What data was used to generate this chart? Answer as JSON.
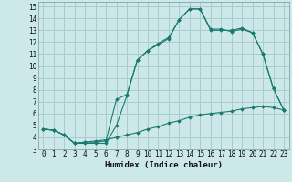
{
  "xlabel": "Humidex (Indice chaleur)",
  "ylabel": "",
  "background_color": "#cce8e8",
  "grid_color": "#aacccc",
  "line_color": "#1a7a6e",
  "xlim": [
    -0.5,
    23.5
  ],
  "ylim": [
    3,
    15.4
  ],
  "xticks": [
    0,
    1,
    2,
    3,
    4,
    5,
    6,
    7,
    8,
    9,
    10,
    11,
    12,
    13,
    14,
    15,
    16,
    17,
    18,
    19,
    20,
    21,
    22,
    23
  ],
  "yticks": [
    3,
    4,
    5,
    6,
    7,
    8,
    9,
    10,
    11,
    12,
    13,
    14,
    15
  ],
  "line1_x": [
    0,
    1,
    2,
    3,
    4,
    5,
    6,
    7,
    8,
    9,
    10,
    11,
    12,
    13,
    14,
    15,
    16,
    17,
    18,
    19,
    20,
    21,
    22,
    23
  ],
  "line1_y": [
    4.7,
    4.6,
    4.2,
    3.5,
    3.5,
    3.5,
    3.5,
    5.0,
    7.5,
    10.5,
    11.3,
    11.8,
    12.3,
    13.9,
    14.8,
    14.8,
    13.1,
    13.1,
    12.9,
    13.1,
    12.8,
    11.0,
    8.1,
    6.3
  ],
  "line2_x": [
    0,
    1,
    2,
    3,
    4,
    5,
    6,
    7,
    8,
    9,
    10,
    11,
    12,
    13,
    14,
    15,
    16,
    17,
    18,
    19,
    20,
    21,
    22,
    23
  ],
  "line2_y": [
    4.7,
    4.6,
    4.2,
    3.5,
    3.6,
    3.6,
    3.7,
    7.2,
    7.6,
    10.5,
    11.3,
    11.9,
    12.4,
    13.9,
    14.8,
    14.8,
    13.0,
    13.0,
    13.0,
    13.2,
    12.8,
    11.0,
    8.1,
    6.3
  ],
  "line3_x": [
    0,
    1,
    2,
    3,
    4,
    5,
    6,
    7,
    8,
    9,
    10,
    11,
    12,
    13,
    14,
    15,
    16,
    17,
    18,
    19,
    20,
    21,
    22,
    23
  ],
  "line3_y": [
    4.7,
    4.6,
    4.2,
    3.5,
    3.6,
    3.7,
    3.8,
    4.0,
    4.2,
    4.4,
    4.7,
    4.9,
    5.2,
    5.4,
    5.7,
    5.9,
    6.0,
    6.1,
    6.2,
    6.4,
    6.5,
    6.6,
    6.5,
    6.3
  ]
}
